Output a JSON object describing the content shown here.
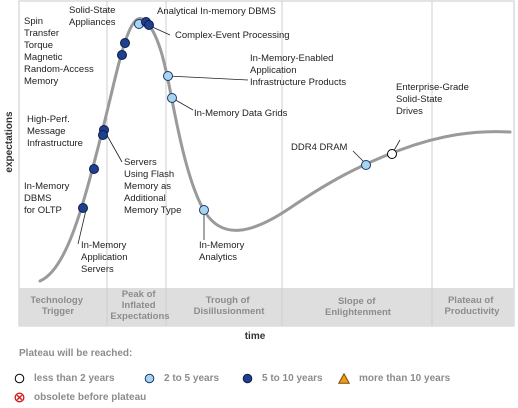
{
  "chart_data": {
    "type": "hype-cycle",
    "xlabel": "time",
    "ylabel": "expectations",
    "phases": [
      {
        "lines": [
          "Technology",
          "Trigger"
        ]
      },
      {
        "lines": [
          "Peak of",
          "Inflated",
          "Expectations"
        ]
      },
      {
        "lines": [
          "Trough of",
          "Disillusionment"
        ]
      },
      {
        "lines": [
          "Slope of",
          "Enlightenment"
        ]
      },
      {
        "lines": [
          "Plateau of",
          "Productivity"
        ]
      }
    ],
    "technologies": [
      {
        "lines": [
          "Spin",
          "Transfer",
          "Torque",
          "Magnetic",
          "Random-Access",
          "Memory"
        ],
        "plateau": "5 to 10 years",
        "position": 0.218
      },
      {
        "lines": [
          "Solid-State",
          "Appliances"
        ],
        "plateau": "2 to 5 years",
        "position": 0.265
      },
      {
        "lines": [
          "Analytical In-memory DBMS"
        ],
        "plateau": "5 to 10 years",
        "position": 0.276
      },
      {
        "lines": [
          "Complex-Event Processing"
        ],
        "plateau": "5 to 10 years",
        "position": 0.283
      },
      {
        "lines": [
          "In-Memory-Enabled",
          "Application",
          "Infrastructure Products"
        ],
        "plateau": "2 to 5 years",
        "position": 0.322
      },
      {
        "lines": [
          "In-Memory Data Grids"
        ],
        "plateau": "2 to 5 years",
        "position": 0.33
      },
      {
        "lines": [
          "High-Perf.",
          "Message",
          "Infrastructure"
        ],
        "plateau": "5 to 10 years",
        "position": 0.185
      },
      {
        "lines": [
          "Servers",
          "Using Flash",
          "Memory as",
          "Additional",
          "Memory Type"
        ],
        "plateau": "5 to 10 years",
        "position": 0.186
      },
      {
        "lines": [
          "In-Memory",
          "DBMS",
          "for OLTP"
        ],
        "plateau": "5 to 10 years",
        "position": 0.165
      },
      {
        "lines": [
          "In-Memory",
          "Application",
          "Servers"
        ],
        "plateau": "5 to 10 years",
        "position": 0.14
      },
      {
        "lines": [
          "In-Memory",
          "Analytics"
        ],
        "plateau": "2 to 5 years",
        "position": 0.39
      },
      {
        "lines": [
          "DDR4 DRAM"
        ],
        "plateau": "2 to 5 years",
        "position": 0.715
      },
      {
        "lines": [
          "Enterprise-Grade",
          "Solid-State",
          "Drives"
        ],
        "plateau": "less than 2 years",
        "position": 0.765
      }
    ]
  },
  "legend": {
    "title": "Plateau will be reached:",
    "items": [
      {
        "label": "less than 2 years",
        "icon": "hollow-circle-icon",
        "fill": "#ffffff",
        "stroke": "#000000"
      },
      {
        "label": "2 to 5 years",
        "icon": "light-blue-circle-icon",
        "fill": "#a8d4f0",
        "stroke": "#1a3a6a"
      },
      {
        "label": "5 to 10 years",
        "icon": "dark-blue-circle-icon",
        "fill": "#1f3f8f",
        "stroke": "#0b1d4a"
      },
      {
        "label": "more than 10 years",
        "icon": "orange-triangle-icon",
        "fill": "#f39a1e",
        "stroke": "#7a4a00"
      },
      {
        "label": "obsolete before plateau",
        "icon": "red-crossed-circle-icon",
        "fill": "#ffffff",
        "stroke": "#d02020"
      }
    ]
  },
  "colors": {
    "curve": "#9a9a9a",
    "phase_band": "#dedede",
    "phase_text": "#8c8c8c",
    "less_than_2": "#ffffff",
    "two_to_five": "#a8d4f0",
    "five_to_ten": "#1f3f8f",
    "more_than_ten": "#f39a1e",
    "obsolete": "#d02020"
  }
}
